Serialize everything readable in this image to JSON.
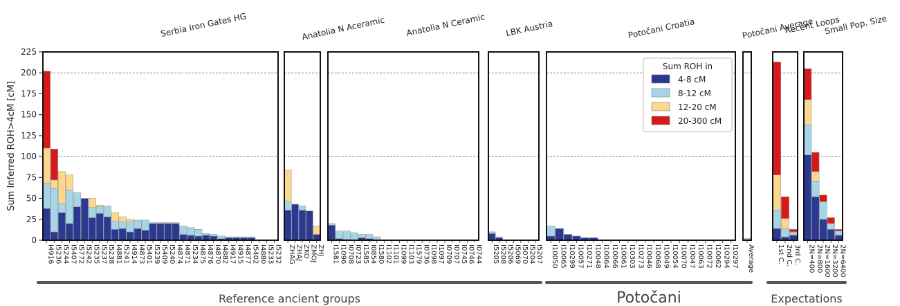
{
  "chart_data": {
    "type": "bar",
    "stacked": true,
    "ylabel": "Sum Inferred ROH>4cM [cM]",
    "ylim": [
      0,
      225
    ],
    "yticks": [
      0,
      25,
      50,
      75,
      100,
      125,
      150,
      175,
      200,
      225
    ],
    "reference_lines": [
      100,
      200
    ],
    "legend": {
      "title": "Sum ROH in",
      "placement": "top-right of Potočani panel",
      "items": [
        {
          "label": "4-8 cM",
          "color": "#2b3990"
        },
        {
          "label": "8-12 cM",
          "color": "#a6d6e6"
        },
        {
          "label": "12-20 cM",
          "color": "#fbd88e"
        },
        {
          "label": "20-300 cM",
          "color": "#d7191c"
        }
      ]
    },
    "panels": [
      {
        "title": "Serbia Iron Gates HG",
        "categories": [
          "I4916",
          "I5236",
          "I5244",
          "I5407",
          "I5772",
          "I5242",
          "I5235",
          "I5237",
          "I5238",
          "I4881",
          "I5241",
          "I4914",
          "I4873",
          "I5401",
          "I5239",
          "I5409",
          "I5240",
          "I4874",
          "I4871",
          "I5234",
          "I4875",
          "I4876",
          "I4870",
          "I4882",
          "I4917",
          "I4915",
          "I4877",
          "I5402",
          "I4880",
          "I5233",
          "I5232"
        ],
        "series": [
          [
            38,
            10,
            33,
            20,
            40,
            50,
            27,
            32,
            28,
            13,
            14,
            10,
            14,
            12,
            20,
            20,
            20,
            20,
            7,
            6,
            5,
            6,
            5,
            2,
            3,
            3,
            3,
            3,
            0,
            0,
            0
          ],
          [
            30,
            52,
            11,
            40,
            17,
            0,
            12,
            8,
            13,
            10,
            8,
            12,
            10,
            12,
            1,
            1,
            1,
            1,
            10,
            9,
            8,
            2,
            2,
            3,
            1,
            1,
            1,
            1,
            0,
            0,
            0
          ],
          [
            42,
            10,
            38,
            18,
            0,
            0,
            11,
            2,
            0,
            10,
            6,
            3,
            0,
            0,
            0,
            0,
            0,
            0,
            0,
            0,
            0,
            0,
            0,
            0,
            0,
            0,
            0,
            0,
            0,
            0,
            0
          ],
          [
            92,
            37,
            0,
            0,
            0,
            0,
            0,
            0,
            0,
            0,
            0,
            0,
            0,
            0,
            0,
            0,
            0,
            0,
            0,
            0,
            0,
            0,
            0,
            0,
            0,
            0,
            0,
            0,
            0,
            0,
            0
          ]
        ]
      },
      {
        "title": "Anatolia N Aceramic",
        "categories": [
          "ZHAG",
          "ZHAJ",
          "ZKO",
          "ZMOJ",
          "ZHJ"
        ],
        "series": [
          [
            36,
            43,
            36,
            35,
            7
          ],
          [
            10,
            0,
            5,
            0,
            0
          ],
          [
            38,
            0,
            0,
            0,
            10
          ],
          [
            0,
            0,
            0,
            0,
            0
          ]
        ]
      },
      {
        "title": "Anatolia N Ceramic",
        "categories": [
          "I1581",
          "I1096",
          "I0708",
          "I0723",
          "I1585",
          "I0854",
          "I1580",
          "I1102",
          "I1101",
          "I1099",
          "I1103",
          "I1579",
          "I0736",
          "I1098",
          "I1097",
          "I0709",
          "I0707",
          "I0745",
          "I0746",
          "I0744"
        ],
        "series": [
          [
            18,
            2,
            1,
            0,
            3,
            2,
            0,
            0,
            0,
            0,
            0,
            0,
            0,
            0,
            0,
            0,
            0,
            0,
            0,
            0
          ],
          [
            2,
            9,
            10,
            9,
            4,
            5,
            4,
            0,
            0,
            0,
            0,
            0,
            0,
            0,
            0,
            0,
            0,
            0,
            0,
            0
          ],
          [
            0,
            0,
            0,
            0,
            0,
            0,
            0,
            0,
            0,
            0,
            0,
            0,
            0,
            0,
            0,
            0,
            0,
            0,
            0,
            0
          ],
          [
            0,
            0,
            0,
            0,
            0,
            0,
            0,
            0,
            0,
            0,
            0,
            0,
            0,
            0,
            0,
            0,
            0,
            0,
            0,
            0
          ]
        ]
      },
      {
        "title": "LBK Austria",
        "categories": [
          "I5205",
          "I5208",
          "I5206",
          "I5069",
          "I5070",
          "I5204",
          "I5207"
        ],
        "series": [
          [
            8,
            3,
            0,
            0,
            0,
            0,
            0
          ],
          [
            2,
            1,
            0,
            0,
            0,
            0,
            0
          ],
          [
            0,
            0,
            0,
            0,
            0,
            0,
            0
          ],
          [
            0,
            0,
            0,
            0,
            0,
            0,
            0
          ]
        ]
      },
      {
        "title": "Potočani Croatia",
        "categories": [
          "I10050",
          "I10065",
          "I10299",
          "I10057",
          "I10271",
          "I10048",
          "I10064",
          "I10066",
          "I10061",
          "I10303",
          "I10273",
          "I10046",
          "I10068",
          "I10049",
          "I10054",
          "I10070",
          "I10047",
          "I10063",
          "I10072",
          "I10062",
          "I10294",
          "I10297"
        ],
        "series": [
          [
            5,
            14,
            7,
            5,
            3,
            3,
            0,
            0,
            0,
            0,
            0,
            0,
            0,
            0,
            0,
            0,
            0,
            0,
            0,
            0,
            0,
            0
          ],
          [
            12,
            0,
            0,
            0,
            0,
            0,
            0,
            0,
            0,
            0,
            0,
            0,
            0,
            0,
            0,
            0,
            0,
            0,
            0,
            0,
            0,
            0
          ],
          [
            0,
            0,
            0,
            0,
            0,
            0,
            0,
            0,
            0,
            0,
            0,
            0,
            0,
            0,
            0,
            0,
            0,
            0,
            0,
            0,
            0,
            0
          ],
          [
            0,
            0,
            0,
            0,
            0,
            0,
            0,
            0,
            0,
            0,
            0,
            0,
            0,
            0,
            0,
            0,
            0,
            0,
            0,
            0,
            0,
            0
          ]
        ]
      },
      {
        "title": "Potočani Average",
        "categories": [
          "Average"
        ],
        "series": [
          [
            1
          ],
          [
            1
          ],
          [
            0
          ],
          [
            0
          ]
        ]
      },
      {
        "title": "Recent Loops",
        "categories": [
          "1st C.",
          "2nd C.",
          "3rd C."
        ],
        "series": [
          [
            14,
            4,
            6
          ],
          [
            22,
            10,
            3
          ],
          [
            42,
            12,
            1
          ],
          [
            135,
            26,
            3
          ]
        ]
      },
      {
        "title": "Small Pop. Size",
        "categories": [
          "2N=400",
          "2N=800",
          "2N=1600",
          "2N=3200",
          "2N=6400"
        ],
        "series": [
          [
            102,
            52,
            25,
            13,
            6
          ],
          [
            36,
            18,
            21,
            7,
            5
          ],
          [
            30,
            12,
            0,
            0,
            0
          ],
          [
            37,
            23,
            8,
            7,
            2
          ]
        ]
      }
    ],
    "group_labels": [
      "Reference ancient groups",
      "Potočani",
      "Expectations"
    ]
  }
}
